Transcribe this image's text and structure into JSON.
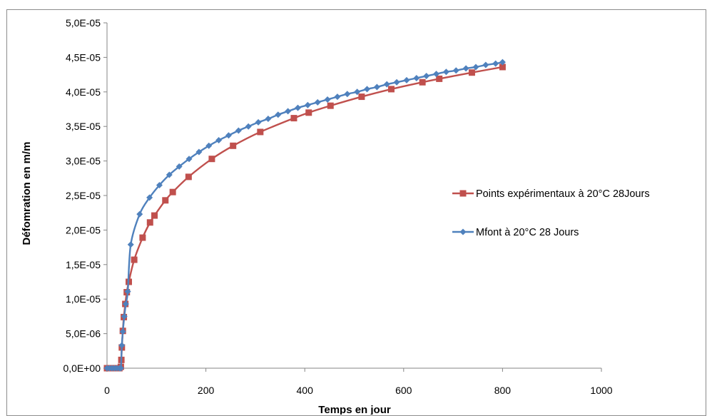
{
  "chart_data": {
    "type": "line",
    "title": "",
    "xlabel": "Temps en jour",
    "ylabel": "Défomration en m/m",
    "xlim": [
      0,
      1000
    ],
    "ylim": [
      0,
      5e-05
    ],
    "x_ticks": [
      0,
      200,
      400,
      600,
      800,
      1000
    ],
    "x_tick_labels": [
      "0",
      "200",
      "400",
      "600",
      "800",
      "1000"
    ],
    "y_ticks": [
      0,
      5e-06,
      1e-05,
      1.5e-05,
      2e-05,
      2.5e-05,
      3e-05,
      3.5e-05,
      4e-05,
      4.5e-05,
      5e-05
    ],
    "y_tick_labels": [
      "0,0E+00",
      "5,0E-06",
      "1,0E-05",
      "1,5E-05",
      "2,0E-05",
      "2,5E-05",
      "3,0E-05",
      "3,5E-05",
      "4,0E-05",
      "4,5E-05",
      "5,0E-05"
    ],
    "grid": false,
    "legend_position": "right",
    "series": [
      {
        "name": "Points expérimentaux  à 20°C 28Jours",
        "color": "#c0504d",
        "marker": "square",
        "x": [
          0,
          5,
          10,
          15,
          20,
          25,
          28,
          29,
          30,
          32,
          34,
          37,
          40,
          44,
          55,
          72,
          87,
          96,
          118,
          133,
          165,
          212,
          255,
          310,
          378,
          408,
          452,
          515,
          575,
          638,
          672,
          738,
          800
        ],
        "y": [
          0,
          0,
          0,
          0,
          0,
          0,
          2e-07,
          1.2e-06,
          3e-06,
          5.4e-06,
          7.4e-06,
          9.3e-06,
          1.1e-05,
          1.25e-05,
          1.57e-05,
          1.89e-05,
          2.11e-05,
          2.21e-05,
          2.43e-05,
          2.55e-05,
          2.77e-05,
          3.03e-05,
          3.22e-05,
          3.42e-05,
          3.62e-05,
          3.7e-05,
          3.8e-05,
          3.93e-05,
          4.04e-05,
          4.14e-05,
          4.19e-05,
          4.28e-05,
          4.36e-05
        ]
      },
      {
        "name": "Mfont à 20°C 28 Jours",
        "color": "#4f81bd",
        "marker": "diamond",
        "x": [
          0,
          5,
          10,
          15,
          20,
          25,
          28,
          30,
          32,
          35,
          38,
          42,
          48,
          66,
          86,
          106,
          126,
          146,
          166,
          186,
          206,
          226,
          246,
          266,
          286,
          306,
          326,
          346,
          366,
          386,
          406,
          426,
          446,
          466,
          486,
          506,
          526,
          546,
          566,
          586,
          606,
          626,
          646,
          666,
          686,
          706,
          726,
          746,
          766,
          786,
          800
        ],
        "y": [
          0,
          0,
          0,
          0,
          0,
          0,
          0,
          3.3e-06,
          5.3e-06,
          7.5e-06,
          9.3e-06,
          1.11e-05,
          1.79e-05,
          2.23e-05,
          2.47e-05,
          2.65e-05,
          2.8e-05,
          2.92e-05,
          3.03e-05,
          3.13e-05,
          3.22e-05,
          3.3e-05,
          3.37e-05,
          3.44e-05,
          3.5e-05,
          3.56e-05,
          3.61e-05,
          3.67e-05,
          3.72e-05,
          3.77e-05,
          3.81e-05,
          3.85e-05,
          3.89e-05,
          3.93e-05,
          3.97e-05,
          4e-05,
          4.04e-05,
          4.07e-05,
          4.11e-05,
          4.14e-05,
          4.17e-05,
          4.2e-05,
          4.23e-05,
          4.26e-05,
          4.29e-05,
          4.31e-05,
          4.34e-05,
          4.36e-05,
          4.39e-05,
          4.41e-05,
          4.43e-05
        ]
      }
    ]
  }
}
